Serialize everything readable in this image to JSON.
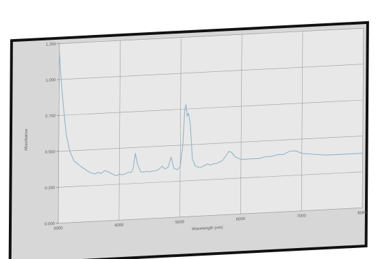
{
  "chart_data": {
    "type": "line",
    "title": "",
    "xlabel": "Wavelength (nm)",
    "ylabel": "Absorbance",
    "x_ticks": [
      "3000",
      "4000",
      "5000",
      "6000",
      "7000",
      "8000"
    ],
    "y_ticks": [
      "0.000",
      "0.250",
      "0.500",
      "0.750",
      "1.000",
      "1.250"
    ],
    "xlim": [
      3000,
      8000
    ],
    "ylim": [
      0,
      1.25
    ],
    "grid": true,
    "colors": {
      "line": "#8fb4c8",
      "frame": "#111111",
      "plot_bg": "#e8e8e8",
      "grid": "#9a9a9a"
    },
    "series": [
      {
        "x": [
          3000,
          3030,
          3070,
          3120,
          3180,
          3250,
          3330,
          3420,
          3520,
          3600,
          3650,
          3700,
          3760,
          3820,
          3900,
          3950,
          4000,
          4050,
          4100,
          4150,
          4200,
          4230,
          4260,
          4300,
          4350,
          4400,
          4450,
          4500,
          4550,
          4600,
          4650,
          4700,
          4750,
          4800,
          4850,
          4900,
          4950,
          5000,
          5040,
          5070,
          5090,
          5110,
          5130,
          5160,
          5200,
          5250,
          5300,
          5350,
          5400,
          5450,
          5500,
          5550,
          5600,
          5650,
          5700,
          5750,
          5800,
          5850,
          5900,
          5950,
          6000,
          6100,
          6200,
          6300,
          6400,
          6500,
          6600,
          6700,
          6800,
          6900,
          7000,
          7200,
          7400,
          7600,
          7800,
          8000
        ],
        "y": [
          1.2,
          1.0,
          0.82,
          0.62,
          0.5,
          0.43,
          0.4,
          0.37,
          0.34,
          0.33,
          0.34,
          0.33,
          0.35,
          0.34,
          0.32,
          0.31,
          0.32,
          0.315,
          0.32,
          0.33,
          0.33,
          0.36,
          0.46,
          0.38,
          0.33,
          0.325,
          0.33,
          0.325,
          0.33,
          0.33,
          0.34,
          0.36,
          0.34,
          0.35,
          0.42,
          0.34,
          0.33,
          0.35,
          0.5,
          0.75,
          0.78,
          0.7,
          0.72,
          0.65,
          0.4,
          0.35,
          0.34,
          0.34,
          0.35,
          0.36,
          0.35,
          0.36,
          0.36,
          0.37,
          0.38,
          0.41,
          0.44,
          0.43,
          0.4,
          0.39,
          0.38,
          0.38,
          0.38,
          0.38,
          0.39,
          0.39,
          0.4,
          0.4,
          0.42,
          0.42,
          0.4,
          0.39,
          0.38,
          0.38,
          0.38,
          0.38
        ]
      }
    ]
  }
}
